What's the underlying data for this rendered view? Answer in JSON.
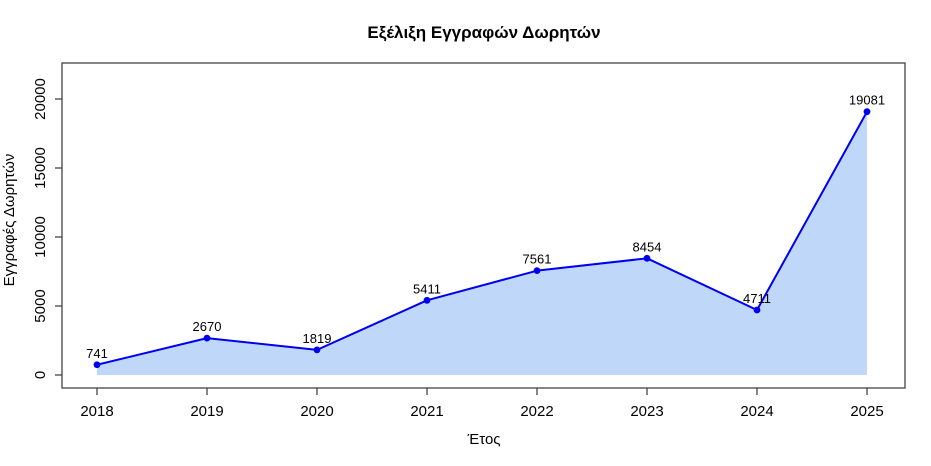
{
  "figure": {
    "background": "#ffffff"
  },
  "chart_data": {
    "type": "area",
    "title": "Εξέλιξη Εγγραφών Δωρητών",
    "xlabel": "Έτος",
    "ylabel": "Εγγραφές Δωρητών",
    "categories": [
      "2018",
      "2019",
      "2020",
      "2021",
      "2022",
      "2023",
      "2024",
      "2025"
    ],
    "values": [
      741,
      2670,
      1819,
      5411,
      7561,
      8454,
      4711,
      19081
    ],
    "point_labels": [
      "741",
      "2670",
      "1819",
      "5411",
      "7561",
      "8454",
      "4711",
      "19081"
    ],
    "yticks": [
      0,
      5000,
      10000,
      15000,
      20000
    ],
    "ylim": [
      0,
      21000
    ],
    "grid": false,
    "legend": "none",
    "colors": {
      "line": "#0000EE",
      "marker": "#0000EE",
      "fill": "#BFD8FA",
      "axis": "#444444",
      "text": "#000000"
    }
  }
}
